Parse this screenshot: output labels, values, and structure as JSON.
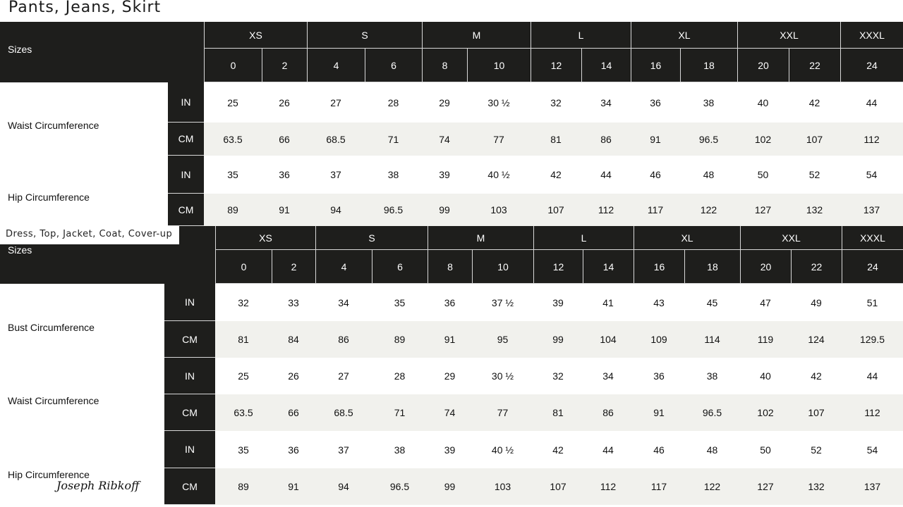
{
  "tables": [
    {
      "title": "Pants, Jeans, Skirt",
      "sizes_label": "Sizes",
      "size_groups": [
        {
          "label": "XS",
          "span": 2
        },
        {
          "label": "S",
          "span": 2
        },
        {
          "label": "M",
          "span": 2
        },
        {
          "label": "L",
          "span": 2
        },
        {
          "label": "XL",
          "span": 2
        },
        {
          "label": "XXL",
          "span": 2
        },
        {
          "label": "XXXL",
          "span": 1
        }
      ],
      "size_numbers": [
        "0",
        "2",
        "4",
        "6",
        "8",
        "10",
        "12",
        "14",
        "16",
        "18",
        "20",
        "22",
        "24"
      ],
      "measurements": [
        {
          "label": "Waist Circumference",
          "rows": [
            {
              "unit": "IN",
              "values": [
                "25",
                "26",
                "27",
                "28",
                "29",
                "30 ½",
                "32",
                "34",
                "36",
                "38",
                "40",
                "42",
                "44"
              ]
            },
            {
              "unit": "CM",
              "values": [
                "63.5",
                "66",
                "68.5",
                "71",
                "74",
                "77",
                "81",
                "86",
                "91",
                "96.5",
                "102",
                "107",
                "112"
              ]
            }
          ]
        },
        {
          "label": "Hip Circumference",
          "rows": [
            {
              "unit": "IN",
              "values": [
                "35",
                "36",
                "37",
                "38",
                "39",
                "40 ½",
                "42",
                "44",
                "46",
                "48",
                "50",
                "52",
                "54"
              ]
            },
            {
              "unit": "CM",
              "values": [
                "89",
                "91",
                "94",
                "96.5",
                "99",
                "103",
                "107",
                "112",
                "117",
                "122",
                "127",
                "132",
                "137"
              ]
            }
          ]
        }
      ]
    },
    {
      "title": "Dress, Top, Jacket, Coat, Cover-up",
      "sizes_label": "Sizes",
      "size_groups": [
        {
          "label": "XS",
          "span": 2
        },
        {
          "label": "S",
          "span": 2
        },
        {
          "label": "M",
          "span": 2
        },
        {
          "label": "L",
          "span": 2
        },
        {
          "label": "XL",
          "span": 2
        },
        {
          "label": "XXL",
          "span": 2
        },
        {
          "label": "XXXL",
          "span": 1
        }
      ],
      "size_numbers": [
        "0",
        "2",
        "4",
        "6",
        "8",
        "10",
        "12",
        "14",
        "16",
        "18",
        "20",
        "22",
        "24"
      ],
      "measurements": [
        {
          "label": "Bust Circumference",
          "rows": [
            {
              "unit": "IN",
              "values": [
                "32",
                "33",
                "34",
                "35",
                "36",
                "37 ½",
                "39",
                "41",
                "43",
                "45",
                "47",
                "49",
                "51"
              ]
            },
            {
              "unit": "CM",
              "values": [
                "81",
                "84",
                "86",
                "89",
                "91",
                "95",
                "99",
                "104",
                "109",
                "114",
                "119",
                "124",
                "129.5"
              ]
            }
          ]
        },
        {
          "label": "Waist Circumference",
          "rows": [
            {
              "unit": "IN",
              "values": [
                "25",
                "26",
                "27",
                "28",
                "29",
                "30 ½",
                "32",
                "34",
                "36",
                "38",
                "40",
                "42",
                "44"
              ]
            },
            {
              "unit": "CM",
              "values": [
                "63.5",
                "66",
                "68.5",
                "71",
                "74",
                "77",
                "81",
                "86",
                "91",
                "96.5",
                "102",
                "107",
                "112"
              ]
            }
          ]
        },
        {
          "label": "Hip Circumference",
          "rows": [
            {
              "unit": "IN",
              "values": [
                "35",
                "36",
                "37",
                "38",
                "39",
                "40 ½",
                "42",
                "44",
                "46",
                "48",
                "50",
                "52",
                "54"
              ]
            },
            {
              "unit": "CM",
              "values": [
                "89",
                "91",
                "94",
                "96.5",
                "99",
                "103",
                "107",
                "112",
                "117",
                "122",
                "127",
                "132",
                "137"
              ]
            }
          ]
        }
      ]
    }
  ],
  "brand_signature": "Joseph Ribkoff",
  "colors": {
    "header_bg": "#1e1e1c",
    "alt_row_bg": "#f1f1ed"
  }
}
